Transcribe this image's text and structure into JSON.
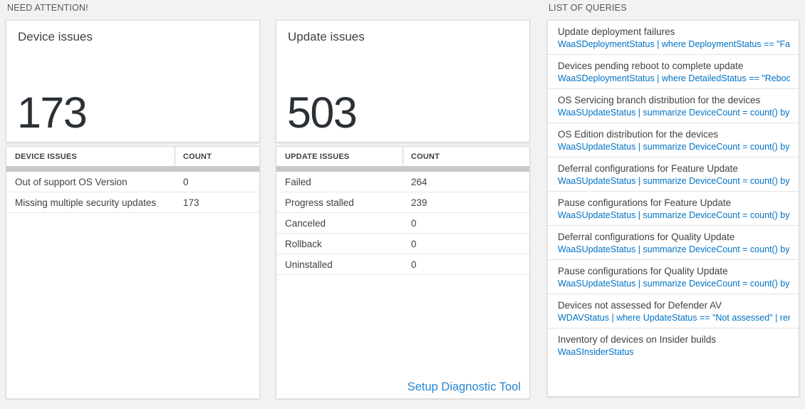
{
  "colors": {
    "link_blue": "#0072c6",
    "setup_link_blue": "#2486d3",
    "accent_dark": "#2b3036"
  },
  "sections": {
    "need_attention": "NEED ATTENTION!",
    "list_of_queries": "LIST OF QUERIES"
  },
  "device_card": {
    "title": "Device issues",
    "value": "173"
  },
  "device_table": {
    "headers": [
      "DEVICE ISSUES",
      "COUNT"
    ],
    "rows": [
      {
        "label": "Out of support OS Version",
        "count": "0"
      },
      {
        "label": "Missing multiple security updates",
        "count": "173"
      }
    ]
  },
  "update_card": {
    "title": "Update issues",
    "value": "503"
  },
  "update_table": {
    "headers": [
      "UPDATE ISSUES",
      "COUNT"
    ],
    "rows": [
      {
        "label": "Failed",
        "count": "264"
      },
      {
        "label": "Progress stalled",
        "count": "239"
      },
      {
        "label": "Canceled",
        "count": "0"
      },
      {
        "label": "Rollback",
        "count": "0"
      },
      {
        "label": "Uninstalled",
        "count": "0"
      }
    ],
    "footer_link": "Setup Diagnostic Tool"
  },
  "queries": {
    "items": [
      {
        "title": "Update deployment failures",
        "query": "WaaSDeploymentStatus | where DeploymentStatus == \"Failed\" |..."
      },
      {
        "title": "Devices pending reboot to complete update",
        "query": "WaaSDeploymentStatus | where DetailedStatus == \"Reboot pend..."
      },
      {
        "title": "OS Servicing branch distribution for the devices",
        "query": "WaaSUpdateStatus | summarize DeviceCount = count() by OSSer..."
      },
      {
        "title": "OS Edition distribution for the devices",
        "query": "WaaSUpdateStatus | summarize DeviceCount = count() by OSEdit..."
      },
      {
        "title": "Deferral configurations for Feature Update",
        "query": "WaaSUpdateStatus | summarize DeviceCount = count() by Featur..."
      },
      {
        "title": "Pause configurations for Feature Update",
        "query": "WaaSUpdateStatus | summarize DeviceCount = count() by Featur..."
      },
      {
        "title": "Deferral configurations for Quality Update",
        "query": "WaaSUpdateStatus | summarize DeviceCount = count() by Qualit..."
      },
      {
        "title": "Pause configurations for Quality Update",
        "query": "WaaSUpdateStatus | summarize DeviceCount = count() by Qualit..."
      },
      {
        "title": "Devices not assessed for Defender AV",
        "query": "WDAVStatus | where UpdateStatus == \"Not assessed\" | render ta..."
      },
      {
        "title": "Inventory of devices on Insider builds",
        "query": "WaaSInsiderStatus"
      }
    ]
  }
}
